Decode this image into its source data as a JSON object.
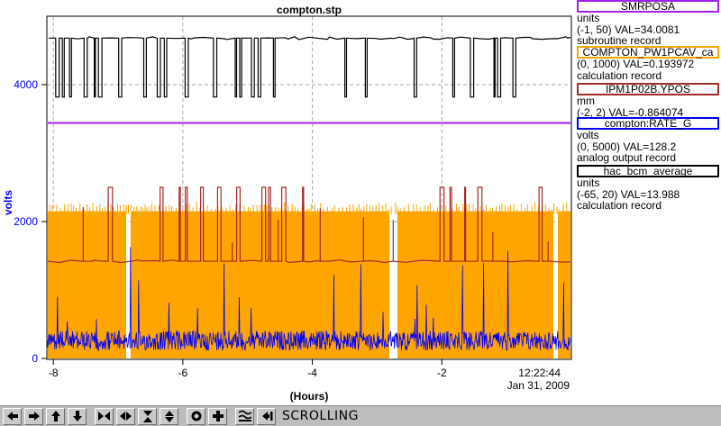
{
  "chart_data": {
    "type": "line",
    "title": "compton.stp",
    "xlabel": "(Hours)",
    "ylabel": "volts",
    "xlim": [
      -8.1,
      0.0
    ],
    "ylim": [
      0,
      5000
    ],
    "x_ticks": [
      -8,
      -6,
      -4,
      -2
    ],
    "x_tick_labels": [
      "-8",
      "-6",
      "-4",
      "-2"
    ],
    "y_ticks": [
      0,
      2000,
      4000
    ],
    "y_tick_labels": [
      "0",
      "2000",
      "4000"
    ],
    "end_time": "12:22:44",
    "end_date": "Jan 31, 2009",
    "grid": true,
    "series": [
      {
        "name": "SMRPOSA",
        "color": "#a020f0",
        "style": "flat",
        "y": 3440
      },
      {
        "name": "COMPTON_PW1PCAV_ca",
        "color": "#ffa500",
        "style": "band",
        "y_low": 0,
        "y_high": 2150
      },
      {
        "name": "IPM1P02B.YPOS",
        "color": "#a52a2a",
        "style": "spiky",
        "y_base": 1420,
        "y_spike": 2500
      },
      {
        "name": "compton:RATE_G",
        "color": "#0000ff",
        "style": "noise",
        "y_mean": 260
      },
      {
        "name": "hac_bcm_average",
        "color": "#000000",
        "style": "dropouts",
        "y_high": 4680,
        "y_low": 3820
      }
    ]
  },
  "legend": [
    {
      "name": "SMRPOSA",
      "color": "#a020f0",
      "lines": [
        "units",
        "(-1, 50) VAL=34.0081",
        "subroutine record"
      ]
    },
    {
      "name": "COMPTON_PW1PCAV_ca",
      "color": "#ffa500",
      "lines": [
        "(0, 1000) VAL=0.193972",
        "calculation record"
      ]
    },
    {
      "name": "IPM1P02B.YPOS",
      "color": "#a52a2a",
      "lines": [
        "mm",
        "(-2, 2) VAL=-0.864074"
      ]
    },
    {
      "name": "compton:RATE_G",
      "color": "#0000ff",
      "lines": [
        "volts",
        "(0, 5000) VAL=128.2",
        "analog output record"
      ]
    },
    {
      "name": "hac_bcm_average",
      "color": "#000000",
      "lines": [
        "units",
        "(-65, 20) VAL=13.988",
        "calculation record"
      ]
    }
  ],
  "toolbar": {
    "buttons": [
      "left-arrow-icon",
      "right-arrow-icon",
      "up-arrow-icon",
      "down-arrow-icon",
      "zoom-in-horizontal-icon",
      "zoom-out-horizontal-icon",
      "zoom-in-vertical-icon",
      "zoom-out-vertical-icon",
      "record-icon",
      "add-icon",
      "autoscale-icon",
      "first-icon"
    ],
    "status": "SCROLLING"
  }
}
